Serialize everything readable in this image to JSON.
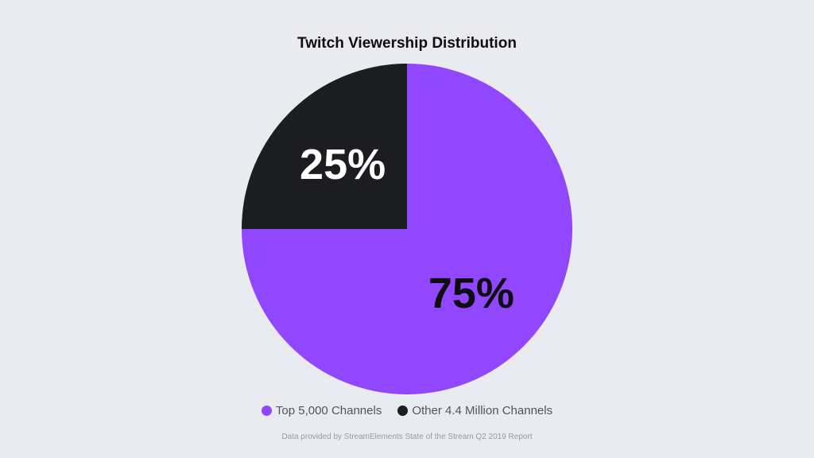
{
  "chart_data": {
    "type": "pie",
    "title": "Twitch Viewership Distribution",
    "slices": [
      {
        "name": "Top 5,000 Channels",
        "value": 75,
        "label": "75%",
        "color": "#9146ff",
        "label_color": "#0e0e10"
      },
      {
        "name": "Other 4.4 Million Channels",
        "value": 25,
        "label": "25%",
        "color": "#1b1d20",
        "label_color": "#ffffff"
      }
    ],
    "legend_position": "bottom",
    "source": "Data provided by StreamElements State of the Stream Q2 2019 Report"
  }
}
